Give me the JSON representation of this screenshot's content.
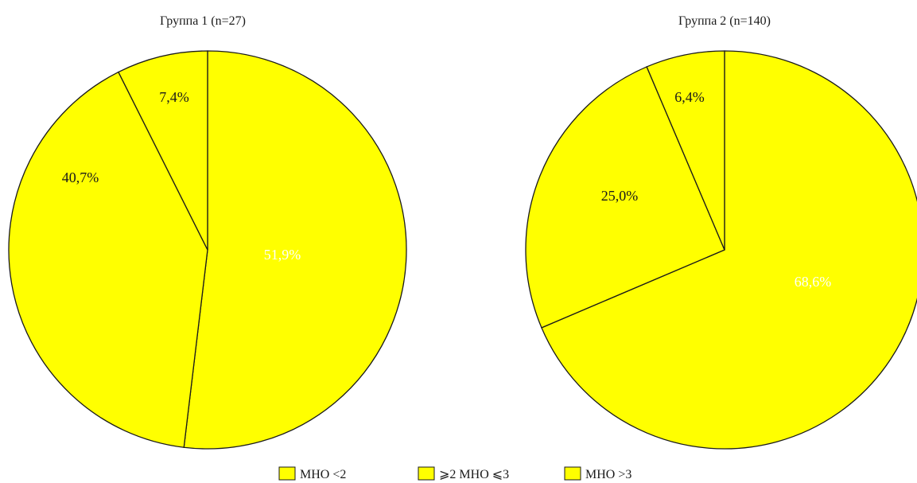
{
  "chart_data": [
    {
      "type": "pie",
      "title": "Группа 1 (n=27)",
      "slices": [
        {
          "category": "МНО <2",
          "label": "51,9%",
          "value": 51.9,
          "color": "#ffff00",
          "label_color": "#ffffff"
        },
        {
          "category": "⩾2 МНО ⩽3",
          "label": "40,7%",
          "value": 40.7,
          "color": "#ffff00",
          "label_color": "#1a1a1a"
        },
        {
          "category": "МНО >3",
          "label": "7,4%",
          "value": 7.4,
          "color": "#ffff00",
          "label_color": "#1a1a1a"
        }
      ]
    },
    {
      "type": "pie",
      "title": "Группа 2 (n=140)",
      "slices": [
        {
          "category": "МНО <2",
          "label": "68,6%",
          "value": 68.6,
          "color": "#ffff00",
          "label_color": "#ffffff"
        },
        {
          "category": "⩾2 МНО ⩽3",
          "label": "25,0%",
          "value": 25.0,
          "color": "#ffff00",
          "label_color": "#1a1a1a"
        },
        {
          "category": "МНО >3",
          "label": "6,4%",
          "value": 6.4,
          "color": "#ffff00",
          "label_color": "#1a1a1a"
        }
      ]
    }
  ],
  "legend": {
    "placement": "bottom",
    "items": [
      {
        "label": "МНО <2",
        "color": "#ffff00"
      },
      {
        "label": "⩾2 МНО ⩽3",
        "color": "#ffff00"
      },
      {
        "label": "МНО >3",
        "color": "#ffff00"
      }
    ]
  },
  "colors": {
    "slice_fill": "#ffff00",
    "stroke": "#1a1a1a"
  }
}
